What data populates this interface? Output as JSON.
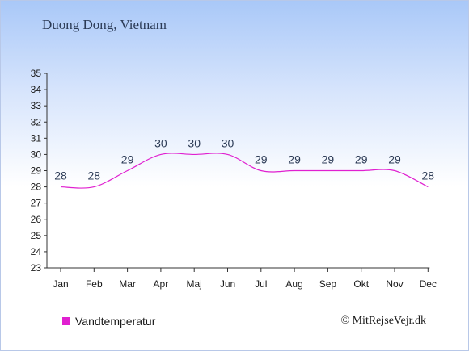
{
  "title": "Duong Dong, Vietnam",
  "colors": {
    "series": "#e020d0",
    "axis": "#333333",
    "label": "#2b3a55"
  },
  "chart_data": {
    "type": "line",
    "categories": [
      "Jan",
      "Feb",
      "Mar",
      "Apr",
      "Maj",
      "Jun",
      "Jul",
      "Aug",
      "Sep",
      "Okt",
      "Nov",
      "Dec"
    ],
    "series": [
      {
        "name": "Vandtemperatur",
        "values": [
          28,
          28,
          29,
          30,
          30,
          30,
          29,
          29,
          29,
          29,
          29,
          28
        ]
      }
    ],
    "ylim": [
      23,
      35
    ],
    "yticks": [
      23,
      24,
      25,
      26,
      27,
      28,
      29,
      30,
      31,
      32,
      33,
      34,
      35
    ],
    "grid": false,
    "legend": "bottom-left"
  },
  "credit": "© MitRejseVejr.dk"
}
